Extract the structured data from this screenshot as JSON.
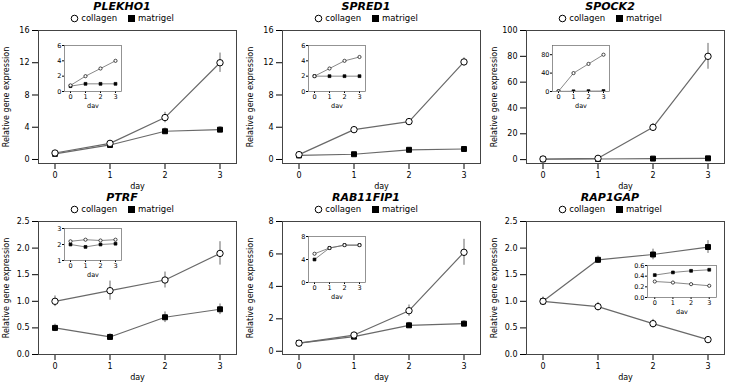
{
  "chart_data": [
    {
      "type": "line",
      "title": "PLEKHO1",
      "xlabel": "day",
      "ylabel": "Relative gene expression",
      "x": [
        0,
        1,
        2,
        3
      ],
      "xlim": [
        -0.3,
        3.3
      ],
      "xticks": [
        0,
        1,
        2,
        3
      ],
      "ylim": [
        -0.5,
        16
      ],
      "yticks": [
        0,
        4,
        8,
        12,
        16
      ],
      "legend": "top",
      "series": [
        {
          "name": "collagen",
          "color": "dimgray",
          "marker": "circle",
          "values": [
            0.8,
            2.0,
            5.2,
            12.0
          ],
          "yerr": [
            0.15,
            0.35,
            0.65,
            1.2
          ]
        },
        {
          "name": "matrigel",
          "color": "dimgray",
          "marker": "square",
          "values": [
            0.7,
            1.8,
            3.5,
            3.7
          ],
          "yerr": [
            0.1,
            0.25,
            0.4,
            0.35
          ]
        }
      ],
      "inset": {
        "type": "line",
        "xlabel": "day",
        "x": [
          0,
          1,
          2,
          3
        ],
        "xlim": [
          -0.4,
          3.4
        ],
        "xticks": [
          0,
          1,
          2,
          3
        ],
        "ylim": [
          0,
          6
        ],
        "yticks": [
          0,
          2,
          4,
          6
        ],
        "series": [
          {
            "name": "collagen",
            "color": "dimgray",
            "marker": "circle",
            "values": [
              0.8,
              2.0,
              3.0,
              4.0
            ]
          },
          {
            "name": "matrigel",
            "color": "dimgray",
            "marker": "square",
            "values": [
              0.7,
              1.0,
              1.0,
              1.0
            ]
          }
        ]
      }
    },
    {
      "type": "line",
      "title": "SPRED1",
      "xlabel": "day",
      "ylabel": "Relative gene expression",
      "x": [
        0,
        1,
        2,
        3
      ],
      "xlim": [
        -0.3,
        3.3
      ],
      "xticks": [
        0,
        1,
        2,
        3
      ],
      "ylim": [
        -0.5,
        16
      ],
      "yticks": [
        0,
        4,
        8,
        12,
        16
      ],
      "legend": "top",
      "series": [
        {
          "name": "collagen",
          "color": "dimgray",
          "marker": "circle",
          "values": [
            0.6,
            3.7,
            4.7,
            12.1
          ],
          "yerr": [
            0.1,
            0.3,
            0.35,
            0.5
          ]
        },
        {
          "name": "matrigel",
          "color": "dimgray",
          "marker": "square",
          "values": [
            0.5,
            0.65,
            1.2,
            1.3
          ],
          "yerr": [
            0.08,
            0.1,
            0.15,
            0.18
          ]
        }
      ],
      "inset": {
        "type": "line",
        "xlabel": "day",
        "x": [
          0,
          1,
          2,
          3
        ],
        "xlim": [
          -0.4,
          3.4
        ],
        "xticks": [
          0,
          1,
          2,
          3
        ],
        "ylim": [
          0,
          6
        ],
        "yticks": [
          0,
          2,
          4,
          6
        ],
        "series": [
          {
            "name": "collagen",
            "color": "dimgray",
            "marker": "circle",
            "values": [
              2.0,
              3.0,
              4.0,
              4.5
            ]
          },
          {
            "name": "matrigel",
            "color": "dimgray",
            "marker": "square",
            "values": [
              2.0,
              2.0,
              2.0,
              2.0
            ]
          }
        ]
      }
    },
    {
      "type": "line",
      "title": "SPOCK2",
      "xlabel": "day",
      "ylabel": "Relative gene expression",
      "x": [
        0,
        1,
        2,
        3
      ],
      "xlim": [
        -0.3,
        3.3
      ],
      "xticks": [
        0,
        1,
        2,
        3
      ],
      "ylim": [
        -3,
        100
      ],
      "yticks": [
        0,
        20,
        40,
        60,
        80,
        100
      ],
      "legend": "top",
      "series": [
        {
          "name": "collagen",
          "color": "dimgray",
          "marker": "circle",
          "values": [
            0.5,
            1.0,
            25.0,
            80.0
          ],
          "yerr": [
            0.2,
            0.3,
            3.0,
            10.0
          ]
        },
        {
          "name": "matrigel",
          "color": "dimgray",
          "marker": "square",
          "values": [
            0.3,
            0.5,
            0.8,
            1.0
          ],
          "yerr": [
            0.08,
            0.1,
            0.12,
            0.12
          ]
        }
      ],
      "inset": {
        "type": "line",
        "xlabel": "day",
        "x": [
          0,
          1,
          2,
          3
        ],
        "xlim": [
          -0.4,
          3.4
        ],
        "xticks": [
          0,
          1,
          2,
          3
        ],
        "ylim": [
          0,
          100
        ],
        "yticks": [
          0,
          40,
          80
        ],
        "series": [
          {
            "name": "collagen",
            "color": "dimgray",
            "marker": "circle",
            "values": [
              0.5,
              40.0,
              60.0,
              80.0
            ]
          },
          {
            "name": "matrigel",
            "color": "dimgray",
            "marker": "square",
            "values": [
              0.3,
              0.5,
              0.8,
              1.0
            ]
          }
        ]
      }
    },
    {
      "type": "line",
      "title": "PTRF",
      "xlabel": "day",
      "ylabel": "Relative gene expression",
      "x": [
        0,
        1,
        2,
        3
      ],
      "xlim": [
        -0.3,
        3.3
      ],
      "xticks": [
        0,
        1,
        2,
        3
      ],
      "ylim": [
        0,
        2.5
      ],
      "yticks": [
        {
          "value": 0,
          "label": "0.0"
        },
        0.5,
        {
          "value": 1,
          "label": "1.0"
        },
        1.5,
        {
          "value": 2,
          "label": "2.0"
        },
        2.5
      ],
      "legend": "top",
      "series": [
        {
          "name": "collagen",
          "color": "dimgray",
          "marker": "circle",
          "values": [
            1.0,
            1.2,
            1.4,
            1.9
          ],
          "yerr": [
            0.1,
            0.18,
            0.15,
            0.22
          ]
        },
        {
          "name": "matrigel",
          "color": "dimgray",
          "marker": "square",
          "values": [
            0.5,
            0.33,
            0.7,
            0.85
          ],
          "yerr": [
            0.07,
            0.06,
            0.1,
            0.1
          ]
        }
      ],
      "inset": {
        "type": "line",
        "xlabel": "day",
        "x": [
          0,
          1,
          2,
          3
        ],
        "xlim": [
          -0.4,
          3.4
        ],
        "xticks": [
          0,
          1,
          2,
          3
        ],
        "ylim": [
          1,
          3
        ],
        "yticks": [
          1,
          2,
          3
        ],
        "series": [
          {
            "name": "collagen",
            "color": "dimgray",
            "marker": "circle",
            "values": [
              2.2,
              2.3,
              2.25,
              2.3
            ]
          },
          {
            "name": "matrigel",
            "color": "dimgray",
            "marker": "square",
            "values": [
              2.0,
              1.85,
              2.0,
              2.05
            ]
          }
        ]
      }
    },
    {
      "type": "line",
      "title": "RAB11FIP1",
      "xlabel": "day",
      "ylabel": "Relative gene expression",
      "x": [
        0,
        1,
        2,
        3
      ],
      "xlim": [
        -0.3,
        3.3
      ],
      "xticks": [
        0,
        1,
        2,
        3
      ],
      "ylim": [
        -0.2,
        8
      ],
      "yticks": [
        0,
        2,
        4,
        6,
        8
      ],
      "legend": "top",
      "series": [
        {
          "name": "collagen",
          "color": "dimgray",
          "marker": "circle",
          "values": [
            0.5,
            1.0,
            2.5,
            6.1
          ],
          "yerr": [
            0.08,
            0.12,
            0.35,
            0.8
          ]
        },
        {
          "name": "matrigel",
          "color": "dimgray",
          "marker": "square",
          "values": [
            0.5,
            0.9,
            1.6,
            1.7
          ],
          "yerr": [
            0.07,
            0.1,
            0.18,
            0.18
          ]
        }
      ],
      "inset": {
        "type": "line",
        "xlabel": "day",
        "x": [
          0,
          1,
          2,
          3
        ],
        "xlim": [
          -0.4,
          3.4
        ],
        "xticks": [
          0,
          1,
          2,
          3
        ],
        "ylim": [
          0,
          8
        ],
        "yticks": [
          0,
          4,
          8
        ],
        "series": [
          {
            "name": "collagen",
            "color": "dimgray",
            "marker": "circle",
            "values": [
              5.0,
              6.0,
              6.5,
              6.5
            ]
          },
          {
            "name": "matrigel",
            "color": "dimgray",
            "marker": "square",
            "values": [
              4.0,
              6.0,
              6.5,
              6.5
            ]
          }
        ]
      }
    },
    {
      "type": "line",
      "title": "RAP1GAP",
      "xlabel": "day",
      "ylabel": "Relative gene expression",
      "x": [
        0,
        1,
        2,
        3
      ],
      "xlim": [
        -0.3,
        3.3
      ],
      "xticks": [
        0,
        1,
        2,
        3
      ],
      "ylim": [
        0,
        2.5
      ],
      "yticks": [
        {
          "value": 0,
          "label": "0.0"
        },
        0.5,
        {
          "value": 1,
          "label": "1.0"
        },
        1.5,
        {
          "value": 2,
          "label": "2.0"
        },
        2.5
      ],
      "legend": "top",
      "series": [
        {
          "name": "collagen",
          "color": "dimgray",
          "marker": "circle",
          "values": [
            1.0,
            0.9,
            0.58,
            0.28
          ],
          "yerr": [
            0.08,
            0.08,
            0.08,
            0.05
          ]
        },
        {
          "name": "matrigel",
          "color": "dimgray",
          "marker": "square",
          "values": [
            1.0,
            1.78,
            1.88,
            2.02
          ],
          "yerr": [
            0.07,
            0.07,
            0.1,
            0.12
          ]
        }
      ],
      "inset": {
        "type": "line",
        "xlabel": "day",
        "x": [
          0,
          1,
          2,
          3
        ],
        "xlim": [
          -0.4,
          3.4
        ],
        "xticks": [
          0,
          1,
          2,
          3
        ],
        "ylim": [
          0,
          0.6
        ],
        "yticks": [
          {
            "value": 0,
            "label": "0.0"
          },
          0.2,
          0.4,
          0.6
        ],
        "series": [
          {
            "name": "collagen",
            "color": "dimgray",
            "marker": "circle",
            "values": [
              0.3,
              0.28,
              0.25,
              0.22
            ]
          },
          {
            "name": "matrigel",
            "color": "dimgray",
            "marker": "square",
            "values": [
              0.42,
              0.47,
              0.5,
              0.52
            ]
          }
        ]
      }
    }
  ]
}
